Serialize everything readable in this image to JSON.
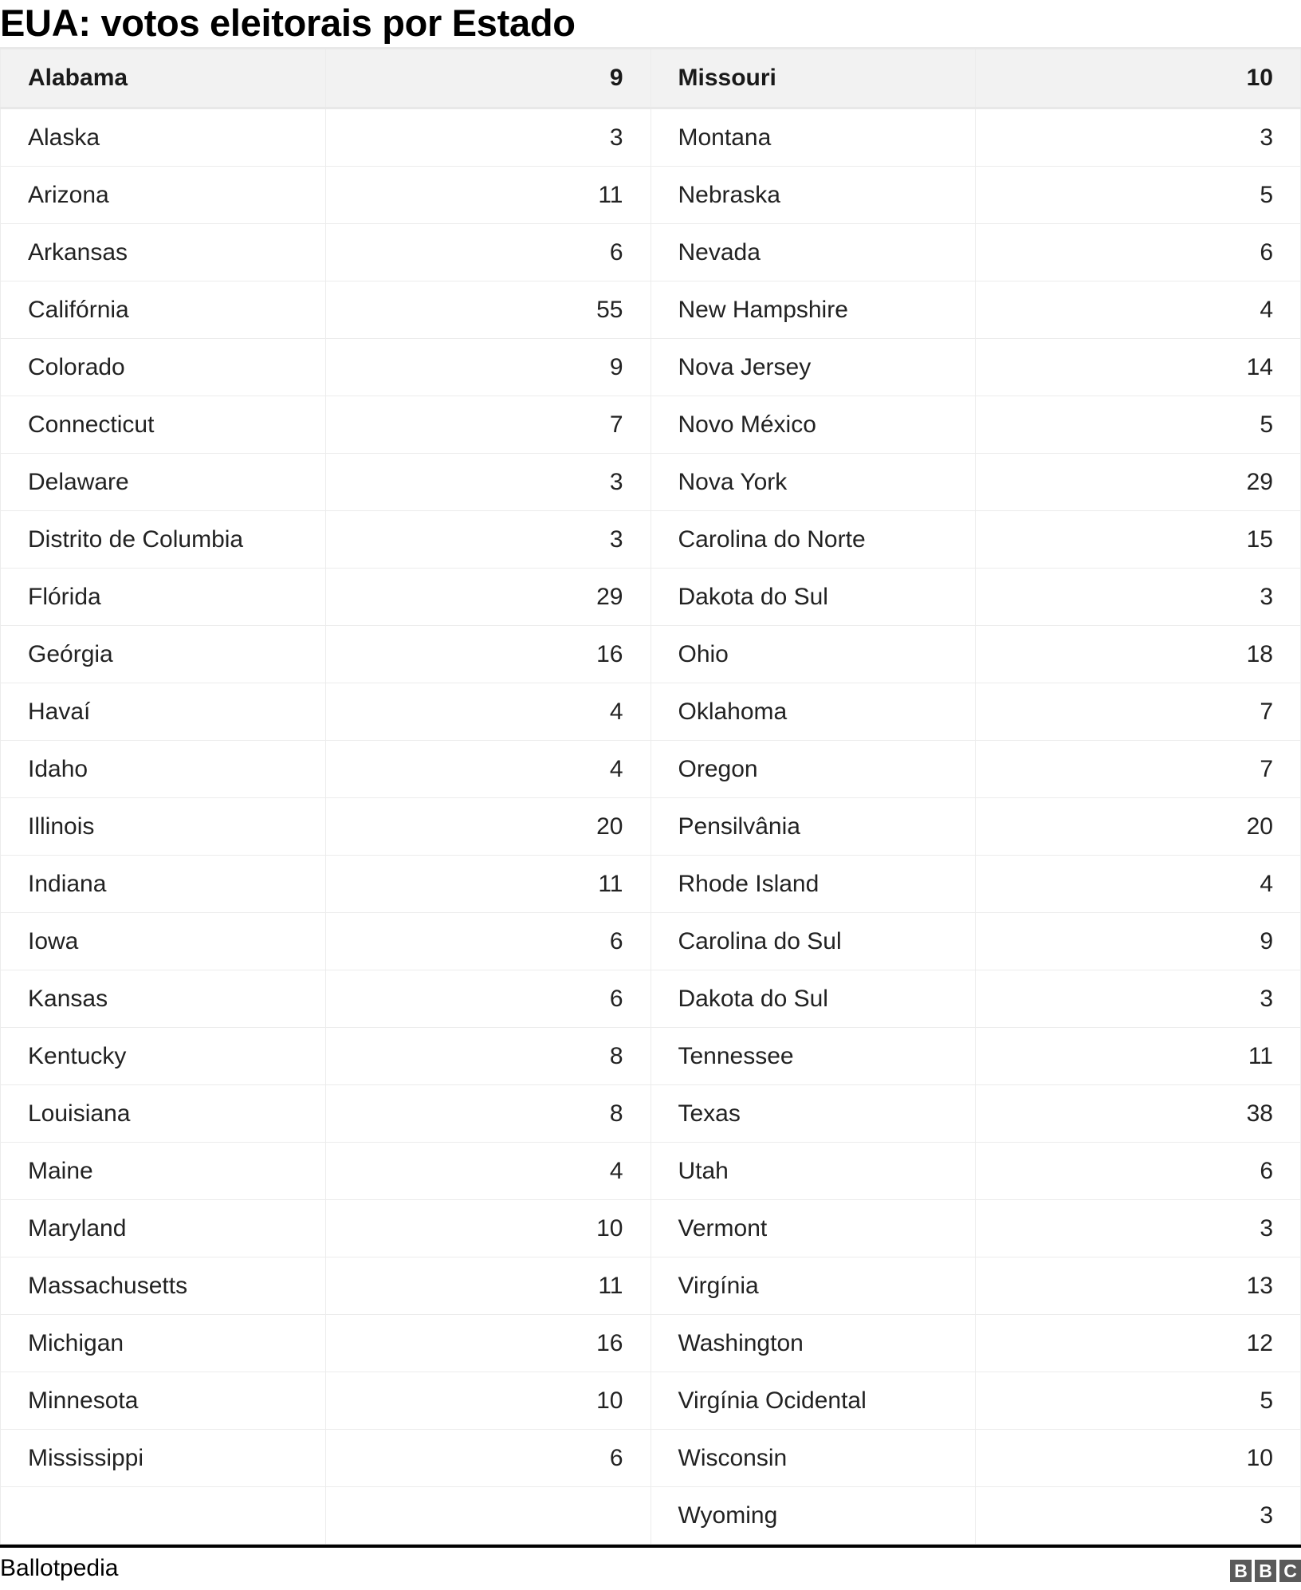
{
  "title": "EUA: votos eleitorais por Estado",
  "source": "Ballotpedia",
  "logo": "BBC",
  "colors": {
    "header_bg": "#f2f2f2",
    "border": "#ececec",
    "logo_bg": "#5a5a5a"
  },
  "rows": [
    [
      "Alabama",
      "9",
      "Missouri",
      "10"
    ],
    [
      "Alaska",
      "3",
      "Montana",
      "3"
    ],
    [
      "Arizona",
      "11",
      "Nebraska",
      "5"
    ],
    [
      "Arkansas",
      "6",
      "Nevada",
      "6"
    ],
    [
      "Califórnia",
      "55",
      "New Hampshire",
      "4"
    ],
    [
      "Colorado",
      "9",
      "Nova Jersey",
      "14"
    ],
    [
      "Connecticut",
      "7",
      "Novo México",
      "5"
    ],
    [
      "Delaware",
      "3",
      "Nova York",
      "29"
    ],
    [
      "Distrito de Columbia",
      "3",
      "Carolina do Norte",
      "15"
    ],
    [
      "Flórida",
      "29",
      "Dakota do Sul",
      "3"
    ],
    [
      "Geórgia",
      "16",
      "Ohio",
      "18"
    ],
    [
      "Havaí",
      "4",
      "Oklahoma",
      "7"
    ],
    [
      "Idaho",
      "4",
      "Oregon",
      "7"
    ],
    [
      "Illinois",
      "20",
      "Pensilvânia",
      "20"
    ],
    [
      "Indiana",
      "11",
      "Rhode Island",
      "4"
    ],
    [
      "Iowa",
      "6",
      "Carolina do Sul",
      "9"
    ],
    [
      "Kansas",
      "6",
      "Dakota do Sul",
      "3"
    ],
    [
      "Kentucky",
      "8",
      "Tennessee",
      "11"
    ],
    [
      "Louisiana",
      "8",
      "Texas",
      "38"
    ],
    [
      "Maine",
      "4",
      "Utah",
      "6"
    ],
    [
      "Maryland",
      "10",
      "Vermont",
      "3"
    ],
    [
      "Massachusetts",
      "11",
      "Virgínia",
      "13"
    ],
    [
      "Michigan",
      "16",
      "Washington",
      "12"
    ],
    [
      "Minnesota",
      "10",
      "Virgínia Ocidental",
      "5"
    ],
    [
      "Mississippi",
      "6",
      "Wisconsin",
      "10"
    ],
    [
      "",
      "",
      "Wyoming",
      "3"
    ]
  ]
}
